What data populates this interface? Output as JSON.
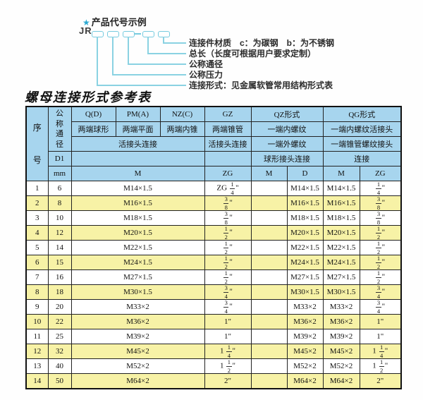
{
  "colors": {
    "header_bg": "#a7d5ee",
    "row_alt_bg": "#f7f2a6",
    "diagram_accent": "#76cbdf",
    "star_color": "#2aa9d2",
    "border": "#222222"
  },
  "diagram": {
    "star": "★",
    "title": "产品代号示例",
    "prefix": "JR",
    "labels": [
      "连接件材质　c：为碳钢　b：为不锈钢",
      "总长（长度可根据用户要求定制）",
      "公称通径",
      "公称压力",
      "连接形式：见金属软管常用结构形式表"
    ]
  },
  "table": {
    "title": "螺母连接形式参考表",
    "header": {
      "seq": "序号",
      "dn": "公称通径",
      "d1": "D1",
      "mm_label": "mm",
      "col_q": "Q(D)",
      "col_pm": "PM(A)",
      "col_nz": "NZ(C)",
      "col_gz": "GZ",
      "col_qz": "QZ形式",
      "col_qg": "QG形式",
      "q_desc": "两端球形",
      "pm_desc": "两端平面",
      "nz_desc": "两端内锥",
      "gz_desc": "两端锥管",
      "qz_desc1": "一端内螺纹",
      "qg_desc1": "一端内螺纹活接头",
      "union_conn": "活接头连接",
      "gz_conn": "活接头连接",
      "qz_desc2": "一端外螺纹",
      "qg_desc2": "一端锥管螺纹接头",
      "qz_conn": "球形接头连接",
      "qg_conn": "连接",
      "m": "M",
      "zg": "ZG",
      "qz_m": "M",
      "qz_d": "D",
      "qg_m": "M",
      "qg_zg": "ZG"
    },
    "rows": [
      {
        "no": "1",
        "mm": "6",
        "m": "M14×1.5",
        "gz": "ZG 1/4\"",
        "qz_m": "",
        "qz_d": "M14×1.5",
        "qg_m": "M14×1.5",
        "qg_zg": "1/4\""
      },
      {
        "no": "2",
        "mm": "8",
        "m": "M16×1.5",
        "gz": "3/8\"",
        "qz_m": "",
        "qz_d": "M16×1.5",
        "qg_m": "M16×1.5",
        "qg_zg": "3/8\""
      },
      {
        "no": "3",
        "mm": "10",
        "m": "M18×1.5",
        "gz": "3/8\"",
        "qz_m": "",
        "qz_d": "M18×1.5",
        "qg_m": "M18×1.5",
        "qg_zg": "3/8\""
      },
      {
        "no": "4",
        "mm": "12",
        "m": "M20×1.5",
        "gz": "1/2\"",
        "qz_m": "",
        "qz_d": "M20×1.5",
        "qg_m": "M20×1.5",
        "qg_zg": "1/2\""
      },
      {
        "no": "5",
        "mm": "14",
        "m": "M22×1.5",
        "gz": "1/2\"",
        "qz_m": "",
        "qz_d": "M22×1.5",
        "qg_m": "M22×1.5",
        "qg_zg": "1/2\""
      },
      {
        "no": "6",
        "mm": "15",
        "m": "M24×1.5",
        "gz": "1/2\"",
        "qz_m": "",
        "qz_d": "M24×1.5",
        "qg_m": "M24×1.5",
        "qg_zg": "1/2\""
      },
      {
        "no": "7",
        "mm": "16",
        "m": "M27×1.5",
        "gz": "1/2\"",
        "qz_m": "",
        "qz_d": "M27×1.5",
        "qg_m": "M27×1.5",
        "qg_zg": "1/2\""
      },
      {
        "no": "8",
        "mm": "18",
        "m": "M30×1.5",
        "gz": "3/4\"",
        "qz_m": "",
        "qz_d": "M30×1.5",
        "qg_m": "M30×1.5",
        "qg_zg": "3/4\""
      },
      {
        "no": "9",
        "mm": "20",
        "m": "M33×2",
        "gz": "3/4\"",
        "qz_m": "",
        "qz_d": "M33×2",
        "qg_m": "M33×2",
        "qg_zg": "3/4\""
      },
      {
        "no": "10",
        "mm": "22",
        "m": "M36×2",
        "gz": "1\"",
        "qz_m": "",
        "qz_d": "M36×2",
        "qg_m": "M36×2",
        "qg_zg": "1\""
      },
      {
        "no": "11",
        "mm": "25",
        "m": "M39×2",
        "gz": "1\"",
        "qz_m": "",
        "qz_d": "M39×2",
        "qg_m": "M39×2",
        "qg_zg": "1\""
      },
      {
        "no": "12",
        "mm": "32",
        "m": "M45×2",
        "gz": "1 1/4\"",
        "qz_m": "",
        "qz_d": "M45×2",
        "qg_m": "M45×2",
        "qg_zg": "1 1/4\""
      },
      {
        "no": "13",
        "mm": "40",
        "m": "M52×2",
        "gz": "1 1/2\"",
        "qz_m": "",
        "qz_d": "M52×2",
        "qg_m": "M52×2",
        "qg_zg": "1 1/2\""
      },
      {
        "no": "14",
        "mm": "50",
        "m": "M64×2",
        "gz": "2\"",
        "qz_m": "",
        "qz_d": "M64×2",
        "qg_m": "M64×2",
        "qg_zg": "2\""
      }
    ]
  }
}
